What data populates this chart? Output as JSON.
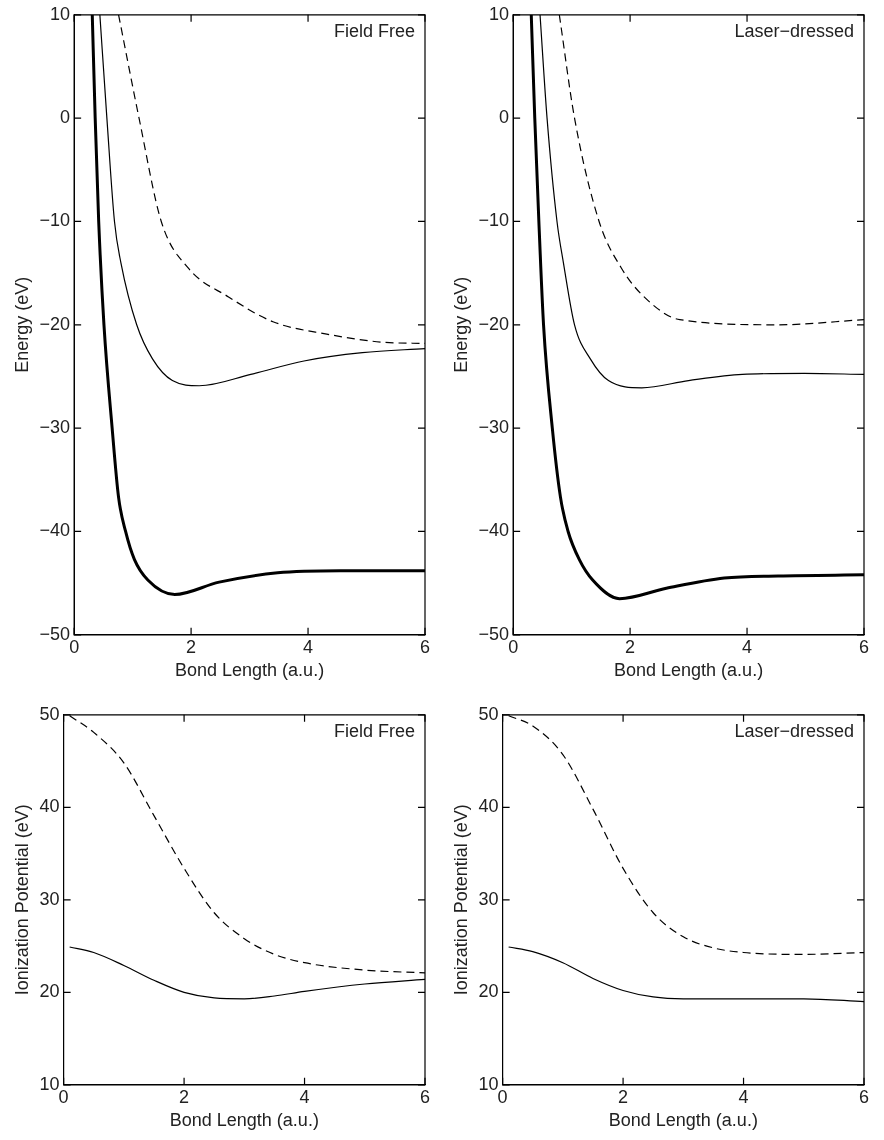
{
  "chart_data": [
    {
      "type": "line",
      "xlabel": "Bond Length (a.u.)",
      "ylabel": "Energy (eV)",
      "xlim": [
        0,
        6
      ],
      "ylim": [
        -50,
        10
      ],
      "xticks": [
        0,
        2,
        4,
        6
      ],
      "yticks": [
        -50,
        -40,
        -30,
        -20,
        -10,
        0,
        10
      ],
      "grid": false,
      "legend": false,
      "marker": "none",
      "annotations": [
        "Field Free"
      ],
      "series": [
        {
          "color": "#000000",
          "line_style": "solid",
          "x": [
            0.31,
            0.36,
            0.42,
            0.51,
            0.65,
            0.76,
            0.88,
            1.03,
            1.26,
            1.72,
            2.48,
            3.48,
            4.55,
            6
          ],
          "values": [
            10,
            0,
            -10,
            -20,
            -30,
            -36.7,
            -40,
            -42.7,
            -44.7,
            -46.1,
            -44.9,
            -44.0,
            -43.8,
            -43.8
          ]
        },
        {
          "color": "#000000",
          "line_style": "solid",
          "x": [
            0.44,
            0.56,
            0.69,
            0.8,
            1.07,
            1.34,
            1.68,
            2.14,
            3.02,
            3.93,
            4.93,
            6
          ],
          "values": [
            10,
            0,
            -10,
            -14,
            -20,
            -23.3,
            -25.4,
            -25.9,
            -24.8,
            -23.5,
            -22.7,
            -22.3
          ]
        },
        {
          "color": "#000000",
          "line_style": "dashed",
          "x": [
            0.76,
            1.11,
            1.49,
            1.95,
            2.64,
            3.4,
            4.32,
            5.31,
            6
          ],
          "values": [
            10,
            0,
            -10,
            -14.5,
            -17.3,
            -19.7,
            -20.9,
            -21.7,
            -21.8
          ]
        }
      ]
    },
    {
      "type": "line",
      "xlabel": "Bond Length (a.u.)",
      "ylabel": "Energy (eV)",
      "xlim": [
        0,
        6
      ],
      "ylim": [
        -50,
        10
      ],
      "xticks": [
        0,
        2,
        4,
        6
      ],
      "yticks": [
        -50,
        -40,
        -30,
        -20,
        -10,
        0,
        10
      ],
      "grid": false,
      "legend": false,
      "marker": "none",
      "annotations": [
        "Laser−dressed"
      ],
      "series": [
        {
          "color": "#000000",
          "line_style": "solid",
          "x": [
            0.31,
            0.37,
            0.44,
            0.52,
            0.67,
            0.81,
            0.94,
            1.13,
            1.36,
            1.82,
            2.62,
            3.61,
            4.53,
            6
          ],
          "values": [
            10,
            0,
            -10,
            -20,
            -30,
            -36.7,
            -40,
            -42.7,
            -44.7,
            -46.5,
            -45.5,
            -44.5,
            -44.3,
            -44.2
          ]
        },
        {
          "color": "#000000",
          "line_style": "solid",
          "x": [
            0.46,
            0.58,
            0.75,
            0.86,
            1.05,
            1.32,
            1.63,
            2.2,
            3.0,
            3.92,
            4.98,
            6
          ],
          "values": [
            10,
            0,
            -10,
            -14,
            -20,
            -23.3,
            -25.4,
            -26.1,
            -25.4,
            -24.8,
            -24.7,
            -24.8
          ]
        },
        {
          "color": "#000000",
          "line_style": "dashed",
          "x": [
            0.79,
            1.05,
            1.47,
            1.85,
            2.24,
            2.85,
            4.53,
            6
          ],
          "values": [
            10,
            0,
            -10,
            -14.5,
            -17.3,
            -19.5,
            -20.0,
            -19.5
          ]
        }
      ]
    },
    {
      "type": "line",
      "xlabel": "Bond Length (a.u.)",
      "ylabel": "Ionization Potential (eV)",
      "xlim": [
        0,
        6
      ],
      "ylim": [
        10,
        50
      ],
      "xticks": [
        0,
        2,
        4,
        6
      ],
      "yticks": [
        10,
        20,
        30,
        40,
        50
      ],
      "grid": false,
      "legend": false,
      "marker": "none",
      "annotations": [
        "Field Free"
      ],
      "series": [
        {
          "color": "#000000",
          "line_style": "solid",
          "x": [
            0.1,
            0.5,
            1,
            1.5,
            2,
            2.5,
            3,
            3.5,
            4,
            5,
            6
          ],
          "values": [
            24.9,
            24.3,
            22.9,
            21.3,
            20.0,
            19.4,
            19.3,
            19.6,
            20.1,
            20.9,
            21.4
          ]
        },
        {
          "color": "#000000",
          "line_style": "dashed",
          "x": [
            0.1,
            0.5,
            1,
            1.5,
            2,
            2.5,
            3,
            3.5,
            4,
            5,
            6
          ],
          "values": [
            49.9,
            48.1,
            44.8,
            39.1,
            33.4,
            28.6,
            25.8,
            24.1,
            23.2,
            22.4,
            22.1
          ]
        }
      ]
    },
    {
      "type": "line",
      "xlabel": "Bond Length (a.u.)",
      "ylabel": "Ionization Potential (eV)",
      "xlim": [
        0,
        6
      ],
      "ylim": [
        10,
        50
      ],
      "xticks": [
        0,
        2,
        4,
        6
      ],
      "yticks": [
        10,
        20,
        30,
        40,
        50
      ],
      "grid": false,
      "legend": false,
      "marker": "none",
      "annotations": [
        "Laser−dressed"
      ],
      "series": [
        {
          "color": "#000000",
          "line_style": "solid",
          "x": [
            0.1,
            0.5,
            1,
            1.5,
            2,
            2.5,
            3,
            4,
            5,
            6
          ],
          "values": [
            24.9,
            24.4,
            23.2,
            21.5,
            20.2,
            19.5,
            19.3,
            19.3,
            19.3,
            19.0
          ]
        },
        {
          "color": "#000000",
          "line_style": "dashed",
          "x": [
            0.1,
            0.5,
            1,
            1.5,
            2,
            2.5,
            3,
            3.5,
            4,
            5,
            6
          ],
          "values": [
            49.9,
            48.8,
            45.7,
            39.8,
            33.4,
            28.6,
            26.0,
            24.8,
            24.3,
            24.1,
            24.3
          ]
        }
      ]
    }
  ]
}
